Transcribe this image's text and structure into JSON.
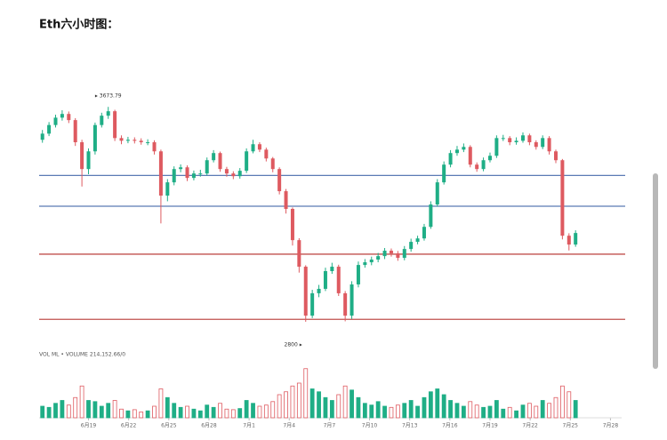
{
  "chart_data": {
    "type": "candlestick",
    "title": "Eth六小时图：",
    "open": [
      3540,
      3565,
      3600,
      3630,
      3645,
      3620,
      3530,
      3421,
      3493,
      3600,
      3638,
      3656,
      3547,
      3536,
      3540,
      3536,
      3530,
      3530,
      3493,
      3313,
      3367,
      3421,
      3428,
      3385,
      3403,
      3403,
      3457,
      3486,
      3421,
      3403,
      3392,
      3414,
      3493,
      3522,
      3500,
      3464,
      3421,
      3331,
      3259,
      3132,
      3024,
      2825,
      2916,
      2934,
      3006,
      3024,
      2916,
      2825,
      2952,
      3031,
      3042,
      3053,
      3067,
      3089,
      3078,
      3060,
      3096,
      3125,
      3139,
      3186,
      3277,
      3367,
      3439,
      3486,
      3500,
      3511,
      3439,
      3421,
      3457,
      3475,
      3547,
      3547,
      3530,
      3536,
      3558,
      3530,
      3511,
      3547,
      3493,
      3457,
      3150,
      3114
    ],
    "high": [
      3580,
      3612,
      3642,
      3660,
      3655,
      3628,
      3540,
      3505,
      3610,
      3650,
      3673.79,
      3662,
      3558,
      3552,
      3550,
      3546,
      3542,
      3538,
      3500,
      3380,
      3432,
      3440,
      3436,
      3415,
      3418,
      3468,
      3498,
      3492,
      3430,
      3412,
      3425,
      3505,
      3540,
      3530,
      3508,
      3470,
      3428,
      3340,
      3265,
      3140,
      3030,
      2930,
      2950,
      3020,
      3040,
      3032,
      2925,
      2965,
      3045,
      3055,
      3065,
      3080,
      3100,
      3098,
      3088,
      3108,
      3138,
      3150,
      3198,
      3290,
      3380,
      3452,
      3498,
      3515,
      3525,
      3518,
      3448,
      3468,
      3488,
      3558,
      3560,
      3555,
      3550,
      3570,
      3565,
      3538,
      3558,
      3555,
      3500,
      3462,
      3160,
      3172
    ],
    "low": [
      3528,
      3555,
      3590,
      3618,
      3608,
      3515,
      3350,
      3400,
      3480,
      3590,
      3625,
      3535,
      3522,
      3526,
      3525,
      3520,
      3518,
      3480,
      3200,
      3290,
      3355,
      3408,
      3372,
      3375,
      3390,
      3395,
      3448,
      3410,
      3390,
      3380,
      3382,
      3405,
      3485,
      3490,
      3452,
      3408,
      3318,
      3240,
      3110,
      3000,
      2800,
      2815,
      2900,
      2925,
      2995,
      2905,
      2802,
      2812,
      2940,
      3020,
      3030,
      3042,
      3055,
      3065,
      3048,
      3050,
      3085,
      3115,
      3130,
      3178,
      3268,
      3358,
      3428,
      3475,
      3490,
      3428,
      3410,
      3412,
      3448,
      3466,
      3535,
      3518,
      3520,
      3528,
      3518,
      3500,
      3502,
      3480,
      3445,
      3135,
      3090,
      3105
    ],
    "close": [
      3565,
      3600,
      3630,
      3645,
      3620,
      3530,
      3421,
      3493,
      3600,
      3638,
      3656,
      3547,
      3536,
      3540,
      3536,
      3530,
      3530,
      3493,
      3313,
      3367,
      3421,
      3428,
      3385,
      3403,
      3403,
      3457,
      3486,
      3421,
      3403,
      3392,
      3414,
      3493,
      3522,
      3500,
      3464,
      3421,
      3331,
      3259,
      3132,
      3024,
      2825,
      2916,
      2934,
      3006,
      3024,
      2916,
      2825,
      2952,
      3031,
      3042,
      3053,
      3067,
      3089,
      3078,
      3060,
      3096,
      3125,
      3139,
      3186,
      3277,
      3367,
      3439,
      3486,
      3500,
      3511,
      3439,
      3421,
      3457,
      3475,
      3547,
      3547,
      3530,
      3536,
      3558,
      3530,
      3511,
      3547,
      3493,
      3457,
      3150,
      3114,
      3161
    ],
    "volume": [
      20,
      18,
      25,
      30,
      22,
      35,
      55,
      30,
      28,
      20,
      25,
      30,
      15,
      12,
      14,
      10,
      12,
      20,
      50,
      35,
      25,
      18,
      20,
      15,
      12,
      22,
      18,
      25,
      15,
      14,
      16,
      30,
      25,
      20,
      22,
      28,
      40,
      45,
      55,
      60,
      85,
      50,
      45,
      35,
      30,
      40,
      55,
      48,
      35,
      25,
      22,
      28,
      20,
      18,
      22,
      25,
      30,
      20,
      35,
      45,
      50,
      40,
      30,
      25,
      20,
      28,
      22,
      18,
      20,
      30,
      15,
      18,
      12,
      22,
      25,
      20,
      30,
      25,
      35,
      55,
      45,
      30
    ],
    "up_color": "#1fae86",
    "down_color": "#de5a60",
    "ylim": [
      2735,
      3765
    ],
    "vlim": [
      0,
      100
    ],
    "xlim": [
      -0.5,
      88
    ],
    "xticks": [
      {
        "value": 7,
        "label": "6月19"
      },
      {
        "value": 13.1,
        "label": "6月22"
      },
      {
        "value": 19.2,
        "label": "6月25"
      },
      {
        "value": 25.3,
        "label": "6月28"
      },
      {
        "value": 31.4,
        "label": "7月1"
      },
      {
        "value": 37.5,
        "label": "7月4"
      },
      {
        "value": 43.6,
        "label": "7月7"
      },
      {
        "value": 49.7,
        "label": "7月10"
      },
      {
        "value": 55.8,
        "label": "7月13"
      },
      {
        "value": 61.9,
        "label": "7月16"
      },
      {
        "value": 68,
        "label": "7月19"
      },
      {
        "value": 74.1,
        "label": "7月22"
      },
      {
        "value": 80.2,
        "label": "7月25"
      },
      {
        "value": 86.3,
        "label": "7月28"
      }
    ],
    "levels": [
      {
        "value": 3395,
        "color": "#5b7bb5"
      },
      {
        "value": 3270,
        "color": "#5b7bb5"
      },
      {
        "value": 3075,
        "color": "#c0504d"
      },
      {
        "value": 2810,
        "color": "#c0504d"
      }
    ],
    "annotations": [
      {
        "text": "▸ 3673.79",
        "value": 3673.79,
        "index": 10
      },
      {
        "text": "2800 ▸",
        "value": 2800,
        "index": 40
      }
    ],
    "volume_label": "VOL ML • VOLUME 214,152.66/0"
  }
}
